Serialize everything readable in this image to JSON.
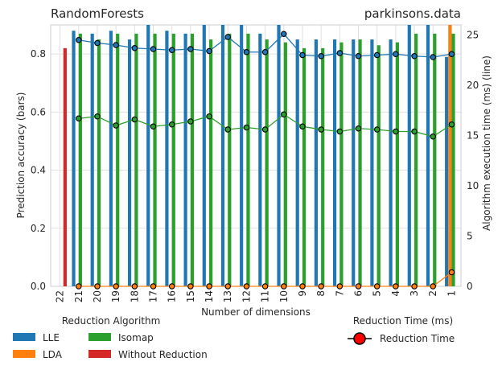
{
  "chart_data": {
    "type": "bar+line",
    "title_left": "RandomForests",
    "title_right": "parkinsons.data",
    "xlabel": "Number of dimensions",
    "ylabel_left": "Prediction accuracy (bars)",
    "ylabel_right": "Algorithm execution time (ms) (line)",
    "categories": [
      "22",
      "21",
      "20",
      "19",
      "18",
      "17",
      "16",
      "15",
      "14",
      "13",
      "12",
      "11",
      "10",
      "9",
      "8",
      "7",
      "6",
      "5",
      "4",
      "3",
      "2",
      "1"
    ],
    "ylim_left": [
      0,
      0.9
    ],
    "ylim_right": [
      0,
      26
    ],
    "yticks_left": [
      "0.0",
      "0.2",
      "0.4",
      "0.6",
      "0.8"
    ],
    "yticks_right": [
      "0",
      "5",
      "10",
      "15",
      "20",
      "25"
    ],
    "grid": true,
    "bar_series": [
      {
        "name": "LLE",
        "color": "#1f77b4",
        "values": [
          null,
          0.88,
          0.87,
          0.88,
          0.85,
          0.9,
          0.88,
          0.87,
          0.9,
          0.9,
          0.9,
          0.87,
          0.9,
          0.85,
          0.85,
          0.85,
          0.85,
          0.85,
          0.85,
          0.9,
          0.9,
          0.79
        ]
      },
      {
        "name": "LDA",
        "color": "#ff7f0e",
        "values": [
          null,
          null,
          null,
          null,
          null,
          null,
          null,
          null,
          null,
          null,
          null,
          null,
          null,
          null,
          null,
          null,
          null,
          null,
          null,
          null,
          null,
          0.97
        ]
      },
      {
        "name": "Isomap",
        "color": "#2ca02c",
        "values": [
          null,
          0.87,
          0.85,
          0.87,
          0.87,
          0.87,
          0.87,
          0.87,
          0.85,
          0.87,
          0.87,
          0.85,
          0.84,
          0.82,
          0.82,
          0.84,
          0.85,
          0.83,
          0.84,
          0.87,
          0.87,
          0.87
        ]
      },
      {
        "name": "Without Reduction",
        "color": "#d62728",
        "values": [
          0.82,
          null,
          null,
          null,
          null,
          null,
          null,
          null,
          null,
          null,
          null,
          null,
          null,
          null,
          null,
          null,
          null,
          null,
          null,
          null,
          null,
          null
        ]
      }
    ],
    "line_series": [
      {
        "name": "LLE time",
        "color": "#1f77b4",
        "values": [
          null,
          24.5,
          24.2,
          24.0,
          23.7,
          23.6,
          23.5,
          23.6,
          23.4,
          24.8,
          23.3,
          23.3,
          25.1,
          23.0,
          22.9,
          23.2,
          22.9,
          23.0,
          23.1,
          22.9,
          22.8,
          23.1
        ]
      },
      {
        "name": "Isomap time",
        "color": "#2ca02c",
        "values": [
          null,
          16.7,
          16.9,
          16.0,
          16.6,
          15.9,
          16.1,
          16.4,
          16.9,
          15.6,
          15.8,
          15.6,
          17.1,
          15.9,
          15.6,
          15.4,
          15.7,
          15.6,
          15.4,
          15.4,
          14.9,
          16.1
        ]
      },
      {
        "name": "LDA time",
        "color": "#ff7f0e",
        "values": [
          null,
          0,
          0,
          0,
          0,
          0,
          0,
          0,
          0,
          0,
          0,
          0,
          0,
          0,
          0,
          0,
          0,
          0,
          0,
          0,
          0,
          1.4
        ]
      }
    ],
    "legend_left": {
      "title": "Reduction Algorithm",
      "items": [
        {
          "label": "LLE",
          "color": "#1f77b4"
        },
        {
          "label": "Isomap",
          "color": "#2ca02c"
        },
        {
          "label": "LDA",
          "color": "#ff7f0e"
        },
        {
          "label": "Without Reduction",
          "color": "#d62728"
        }
      ]
    },
    "legend_right": {
      "title": "Reduction Time (ms)",
      "items": [
        {
          "label": "Reduction Time",
          "color": "#ff0000"
        }
      ]
    }
  }
}
